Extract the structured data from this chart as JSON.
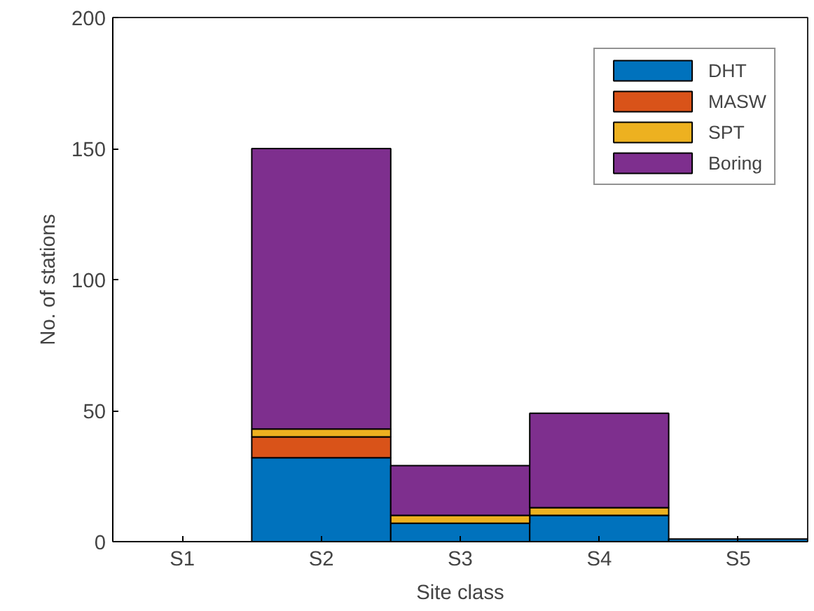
{
  "chart_data": {
    "type": "bar",
    "stacked": true,
    "xlabel": "Site class",
    "ylabel": "No. of stations",
    "categories": [
      "S1",
      "S2",
      "S3",
      "S4",
      "S5"
    ],
    "series": [
      {
        "name": "DHT",
        "color": "#0072bd",
        "values": [
          0,
          32,
          7,
          10,
          1
        ]
      },
      {
        "name": "MASW",
        "color": "#d95319",
        "values": [
          0,
          8,
          0,
          0,
          0
        ]
      },
      {
        "name": "SPT",
        "color": "#edb120",
        "values": [
          0,
          3,
          3,
          3,
          0
        ]
      },
      {
        "name": "Boring",
        "color": "#7e2f8e",
        "values": [
          0,
          107,
          19,
          36,
          0
        ]
      }
    ],
    "ylim": [
      0,
      200
    ],
    "yticks": [
      0,
      50,
      100,
      150,
      200
    ],
    "grid": false,
    "legend": "top right"
  }
}
